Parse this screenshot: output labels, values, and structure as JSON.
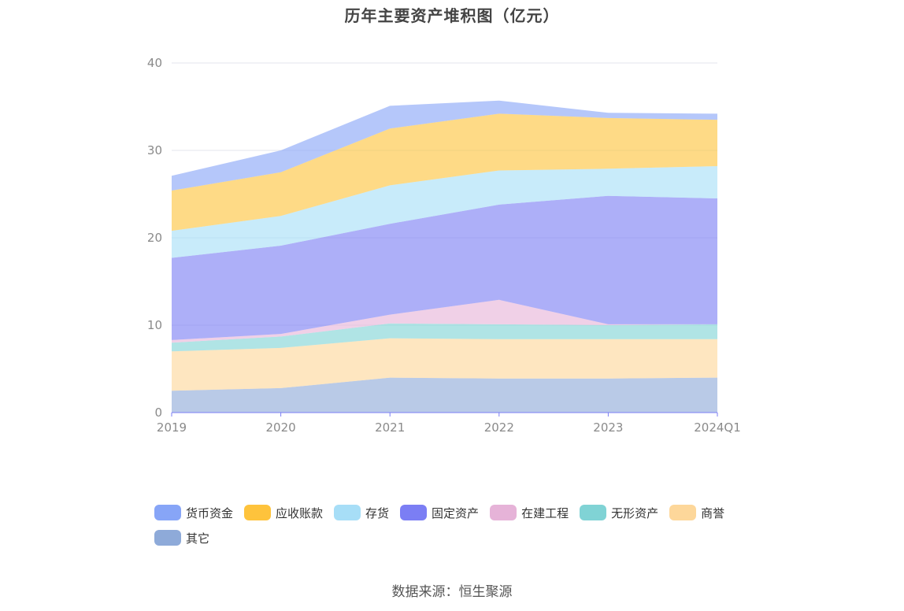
{
  "source": "数据来源：恒生聚源",
  "chart_data": {
    "type": "area",
    "stacked": true,
    "title": "历年主要资产堆积图（亿元）",
    "x": [
      "2019",
      "2020",
      "2021",
      "2022",
      "2023",
      "2024Q1"
    ],
    "ylim": [
      0,
      40
    ],
    "yticks": [
      "0",
      "10",
      "20",
      "30",
      "40"
    ],
    "grid": true,
    "legend_position": "bottom",
    "series": [
      {
        "name": "其它",
        "color": "#8eaad9",
        "values": [
          2.5,
          2.8,
          4.0,
          3.9,
          3.9,
          4.0
        ]
      },
      {
        "name": "商誉",
        "color": "#fdd79a",
        "values": [
          4.5,
          4.6,
          4.5,
          4.5,
          4.5,
          4.4
        ]
      },
      {
        "name": "无形资产",
        "color": "#80d3d5",
        "values": [
          1.0,
          1.3,
          1.7,
          1.7,
          1.6,
          1.7
        ]
      },
      {
        "name": "在建工程",
        "color": "#e6b3d8",
        "values": [
          0.3,
          0.3,
          1.0,
          2.8,
          0.1,
          0.0
        ]
      },
      {
        "name": "固定资产",
        "color": "#7b7ef4",
        "values": [
          9.4,
          10.1,
          10.4,
          10.9,
          14.7,
          14.4
        ]
      },
      {
        "name": "存货",
        "color": "#a7def7",
        "values": [
          3.1,
          3.4,
          4.4,
          3.9,
          3.1,
          3.7
        ]
      },
      {
        "name": "应收账款",
        "color": "#fec33c",
        "values": [
          4.6,
          5.0,
          6.5,
          6.5,
          5.8,
          5.3
        ]
      },
      {
        "name": "货币资金",
        "color": "#87a5f7",
        "values": [
          1.7,
          2.5,
          2.6,
          1.5,
          0.6,
          0.7
        ]
      }
    ],
    "legend_order": [
      "货币资金",
      "应收账款",
      "存货",
      "固定资产",
      "在建工程",
      "无形资产",
      "商誉",
      "其它"
    ]
  }
}
